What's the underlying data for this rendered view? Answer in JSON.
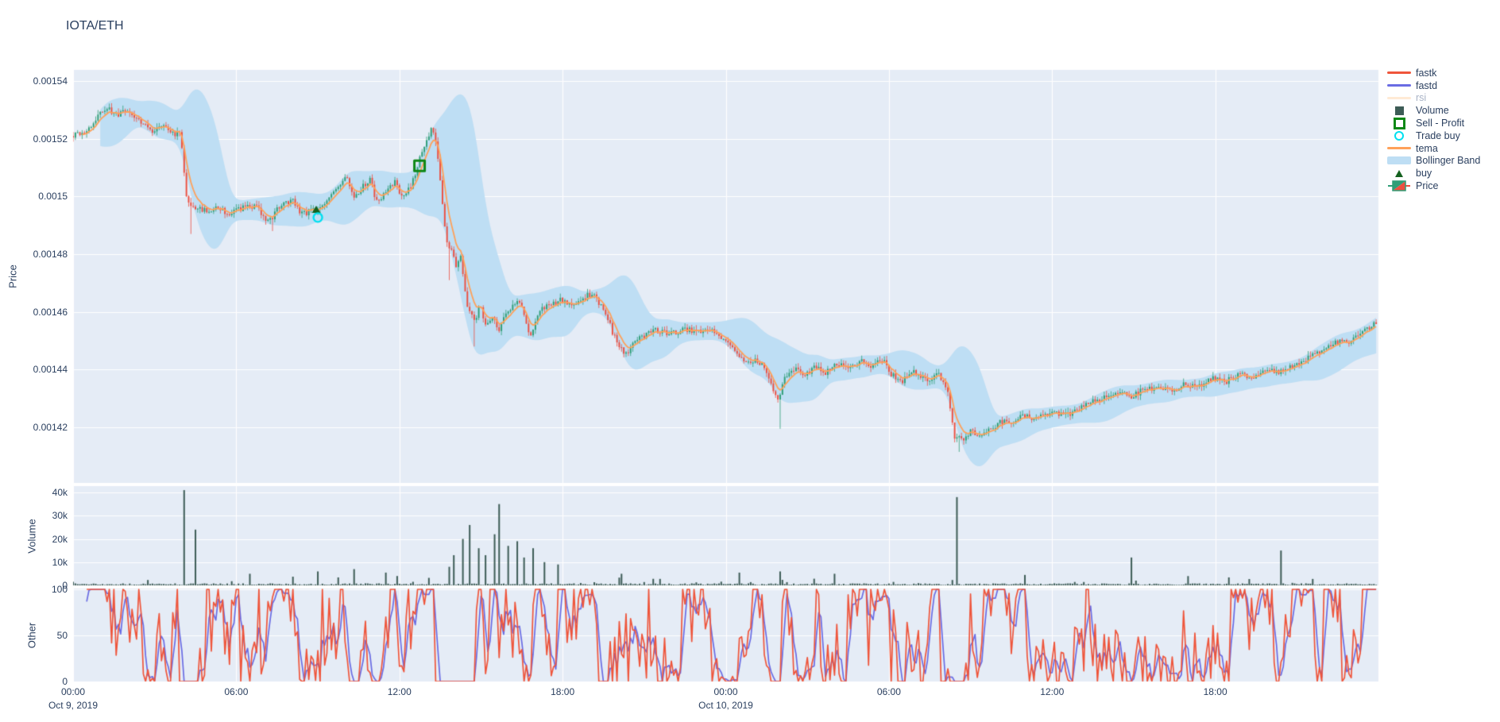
{
  "title": "IOTA/ETH",
  "colors": {
    "paper": "#ffffff",
    "panel_bg": "#e5ecf6",
    "grid": "#ffffff",
    "text": "#2a3f5f",
    "fastk": "#ef553b",
    "fastd": "#6a6ce3",
    "rsi_dim": "#ffd9b3",
    "volume_bar": "#3d5c56",
    "sell_profit": "#0e8816",
    "trade_buy": "#00e0f0",
    "tema": "#ffa15a",
    "bollinger": "#bedef4",
    "buy": "#14611f",
    "candle_up": "#2f9e77",
    "candle_down": "#ec4f41"
  },
  "legend": {
    "items": [
      {
        "id": "fastk",
        "label": "fastk",
        "glyph": "line",
        "color": "#ef553b",
        "dim": false
      },
      {
        "id": "fastd",
        "label": "fastd",
        "glyph": "line",
        "color": "#6a6ce3",
        "dim": false
      },
      {
        "id": "rsi",
        "label": "rsi",
        "glyph": "line",
        "color": "#ffd9b3",
        "dim": true
      },
      {
        "id": "volume",
        "label": "Volume",
        "glyph": "square-filled",
        "color": "#3d5c56",
        "dim": false
      },
      {
        "id": "sell-profit",
        "label": "Sell - Profit",
        "glyph": "square-open",
        "color": "#0e8816",
        "dim": false
      },
      {
        "id": "trade-buy",
        "label": "Trade buy",
        "glyph": "circle-open",
        "color": "#00e0f0",
        "dim": false
      },
      {
        "id": "tema",
        "label": "tema",
        "glyph": "line",
        "color": "#ffa15a",
        "dim": false
      },
      {
        "id": "bollinger",
        "label": "Bollinger Band",
        "glyph": "band",
        "color": "#bedef4",
        "dim": false
      },
      {
        "id": "buy",
        "label": "buy",
        "glyph": "triangle",
        "color": "#14611f",
        "dim": false
      },
      {
        "id": "price",
        "label": "Price",
        "glyph": "candle",
        "color": "#2f9e77",
        "color2": "#ec4f41",
        "dim": false
      }
    ]
  },
  "axes": {
    "price": {
      "title": "Price",
      "ticks": [
        [
          "0.00154",
          154
        ],
        [
          "0.00152",
          152
        ],
        [
          "0.0015",
          150
        ],
        [
          "0.00148",
          148
        ],
        [
          "0.00146",
          146
        ],
        [
          "0.00144",
          144
        ],
        [
          "0.00142",
          142
        ]
      ]
    },
    "volume": {
      "title": "Volume",
      "ticks": [
        [
          "40k",
          40000
        ],
        [
          "30k",
          30000
        ],
        [
          "20k",
          20000
        ],
        [
          "10k",
          10000
        ],
        [
          "0",
          0
        ]
      ]
    },
    "other": {
      "title": "Other",
      "ticks": [
        [
          "100",
          100
        ],
        [
          "50",
          50
        ],
        [
          "0",
          0
        ]
      ]
    },
    "x": {
      "ticks": [
        [
          "00:00",
          0
        ],
        [
          "06:00",
          6
        ],
        [
          "12:00",
          12
        ],
        [
          "18:00",
          18
        ],
        [
          "00:00",
          24
        ],
        [
          "06:00",
          30
        ],
        [
          "12:00",
          36
        ],
        [
          "18:00",
          42
        ]
      ],
      "dates": [
        {
          "label": "Oct 9, 2019",
          "t": 0
        },
        {
          "label": "Oct 10, 2019",
          "t": 24
        }
      ]
    }
  },
  "chart_data": {
    "type": "candlestick+volume+oscillator",
    "pair": "IOTA/ETH",
    "x_start": "Oct 9, 2019 00:00",
    "x_end": "Oct 11, 2019 00:00",
    "interval_minutes": 5,
    "price_unit": 1e-05,
    "ylim_price": [
      0.001401,
      0.001544
    ],
    "ylim_volume": [
      0,
      42700
    ],
    "ylim_other": [
      0,
      100
    ],
    "series_visible": [
      "Price",
      "Bollinger Band",
      "tema",
      "Volume",
      "fastk",
      "fastd",
      "buy",
      "Trade buy",
      "Sell - Profit"
    ],
    "series_hidden": [
      "rsi"
    ],
    "price_anchors": [
      [
        0,
        152.1
      ],
      [
        0.4,
        152.2
      ],
      [
        0.8,
        152.5
      ],
      [
        1.3,
        153.1
      ],
      [
        1.7,
        152.8
      ],
      [
        2.1,
        153.0
      ],
      [
        2.5,
        152.6
      ],
      [
        3.0,
        152.3
      ],
      [
        3.4,
        152.5
      ],
      [
        3.8,
        152.2
      ],
      [
        4.05,
        152.1
      ],
      [
        4.25,
        149.9
      ],
      [
        4.6,
        149.6
      ],
      [
        5.0,
        149.5
      ],
      [
        5.4,
        149.7
      ],
      [
        5.8,
        149.4
      ],
      [
        6.3,
        149.6
      ],
      [
        6.8,
        149.7
      ],
      [
        7.3,
        149.1
      ],
      [
        7.6,
        149.6
      ],
      [
        8.1,
        149.9
      ],
      [
        8.5,
        149.4
      ],
      [
        8.95,
        149.5
      ],
      [
        9.4,
        149.9
      ],
      [
        9.8,
        150.3
      ],
      [
        10.1,
        150.8
      ],
      [
        10.4,
        149.9
      ],
      [
        10.7,
        150.3
      ],
      [
        11.0,
        150.6
      ],
      [
        11.25,
        149.8
      ],
      [
        11.55,
        150.1
      ],
      [
        11.9,
        150.5
      ],
      [
        12.2,
        150.0
      ],
      [
        12.5,
        150.3
      ],
      [
        12.75,
        151.1
      ],
      [
        13.0,
        151.7
      ],
      [
        13.25,
        152.3
      ],
      [
        13.45,
        151.9
      ],
      [
        13.6,
        150.3
      ],
      [
        13.8,
        148.4
      ],
      [
        14.0,
        148.1
      ],
      [
        14.15,
        147.6
      ],
      [
        14.35,
        147.9
      ],
      [
        14.6,
        146.1
      ],
      [
        14.85,
        145.7
      ],
      [
        15.05,
        146.3
      ],
      [
        15.25,
        145.5
      ],
      [
        15.5,
        145.9
      ],
      [
        15.75,
        145.4
      ],
      [
        16.1,
        146.1
      ],
      [
        16.5,
        146.4
      ],
      [
        16.9,
        145.2
      ],
      [
        17.25,
        146.0
      ],
      [
        17.6,
        146.3
      ],
      [
        18.0,
        146.4
      ],
      [
        18.4,
        146.2
      ],
      [
        18.8,
        146.5
      ],
      [
        19.2,
        146.6
      ],
      [
        19.6,
        146.1
      ],
      [
        20.0,
        145.1
      ],
      [
        20.35,
        144.5
      ],
      [
        20.7,
        144.9
      ],
      [
        21.1,
        145.2
      ],
      [
        21.5,
        145.4
      ],
      [
        22.0,
        145.2
      ],
      [
        22.5,
        145.4
      ],
      [
        23.0,
        145.3
      ],
      [
        23.5,
        145.4
      ],
      [
        24.0,
        145.1
      ],
      [
        24.4,
        144.6
      ],
      [
        24.8,
        144.2
      ],
      [
        25.2,
        144.4
      ],
      [
        25.6,
        143.9
      ],
      [
        26.0,
        142.9
      ],
      [
        26.2,
        143.6
      ],
      [
        26.6,
        144.0
      ],
      [
        27.0,
        143.8
      ],
      [
        27.4,
        144.1
      ],
      [
        27.8,
        143.9
      ],
      [
        28.2,
        144.2
      ],
      [
        28.6,
        144.0
      ],
      [
        29.0,
        144.3
      ],
      [
        29.4,
        144.1
      ],
      [
        29.8,
        144.4
      ],
      [
        30.2,
        143.8
      ],
      [
        30.6,
        143.6
      ],
      [
        31.0,
        143.9
      ],
      [
        31.5,
        143.7
      ],
      [
        31.9,
        143.8
      ],
      [
        32.2,
        143.4
      ],
      [
        32.5,
        141.7
      ],
      [
        32.8,
        141.5
      ],
      [
        33.1,
        141.9
      ],
      [
        33.4,
        141.6
      ],
      [
        33.8,
        141.9
      ],
      [
        34.2,
        142.2
      ],
      [
        34.6,
        142.1
      ],
      [
        35.0,
        142.4
      ],
      [
        35.5,
        142.3
      ],
      [
        36.0,
        142.5
      ],
      [
        36.5,
        142.4
      ],
      [
        37.0,
        142.6
      ],
      [
        37.5,
        142.9
      ],
      [
        38.0,
        143.0
      ],
      [
        38.5,
        143.2
      ],
      [
        39.0,
        143.1
      ],
      [
        39.5,
        143.3
      ],
      [
        40.0,
        143.4
      ],
      [
        40.5,
        143.2
      ],
      [
        41.0,
        143.5
      ],
      [
        41.5,
        143.4
      ],
      [
        42.0,
        143.7
      ],
      [
        42.5,
        143.6
      ],
      [
        43.0,
        143.8
      ],
      [
        43.5,
        143.7
      ],
      [
        44.0,
        144.0
      ],
      [
        44.5,
        143.9
      ],
      [
        45.0,
        144.2
      ],
      [
        45.5,
        144.4
      ],
      [
        46.0,
        144.6
      ],
      [
        46.5,
        144.9
      ],
      [
        47.0,
        145.0
      ],
      [
        47.5,
        145.3
      ],
      [
        48,
        145.6
      ]
    ],
    "wick_events": [
      {
        "t": 4.3,
        "low": 148.7
      },
      {
        "t": 7.3,
        "low": 148.8
      },
      {
        "t": 13.85,
        "low": 147.1
      },
      {
        "t": 14.75,
        "low": 144.8
      },
      {
        "t": 26.0,
        "low": 141.95
      },
      {
        "t": 32.55,
        "low": 141.15
      }
    ],
    "volume_spikes": [
      {
        "t": 4.1,
        "v": 41000
      },
      {
        "t": 4.5,
        "v": 24000
      },
      {
        "t": 6.5,
        "v": 5000
      },
      {
        "t": 9.0,
        "v": 6000
      },
      {
        "t": 10.3,
        "v": 7000
      },
      {
        "t": 11.5,
        "v": 5500
      },
      {
        "t": 13.8,
        "v": 8000
      },
      {
        "t": 14.0,
        "v": 13000
      },
      {
        "t": 14.3,
        "v": 20000
      },
      {
        "t": 14.6,
        "v": 26000
      },
      {
        "t": 14.9,
        "v": 16000
      },
      {
        "t": 15.2,
        "v": 13000
      },
      {
        "t": 15.5,
        "v": 22000
      },
      {
        "t": 15.7,
        "v": 35000
      },
      {
        "t": 16.0,
        "v": 17000
      },
      {
        "t": 16.3,
        "v": 19000
      },
      {
        "t": 16.6,
        "v": 12000
      },
      {
        "t": 16.9,
        "v": 16000
      },
      {
        "t": 17.3,
        "v": 10000
      },
      {
        "t": 17.8,
        "v": 9000
      },
      {
        "t": 20.2,
        "v": 5000
      },
      {
        "t": 24.5,
        "v": 5500
      },
      {
        "t": 26.0,
        "v": 6000
      },
      {
        "t": 28.0,
        "v": 5000
      },
      {
        "t": 32.5,
        "v": 38000
      },
      {
        "t": 35.0,
        "v": 4500
      },
      {
        "t": 38.9,
        "v": 12000
      },
      {
        "t": 41.0,
        "v": 4000
      },
      {
        "t": 44.4,
        "v": 15000
      }
    ],
    "markers": [
      {
        "id": "buy",
        "label": "buy",
        "type": "triangle-up",
        "t": 8.94,
        "price": 0.0014954,
        "color": "#14611f"
      },
      {
        "id": "trade-buy",
        "label": "Trade buy",
        "type": "circle-open",
        "t": 9.0,
        "price": 0.0014927,
        "color": "#00e0f0"
      },
      {
        "id": "sell-profit",
        "label": "Sell - Profit",
        "type": "square-open",
        "t": 12.74,
        "price": 0.0015106,
        "color": "#0e8816"
      }
    ]
  }
}
